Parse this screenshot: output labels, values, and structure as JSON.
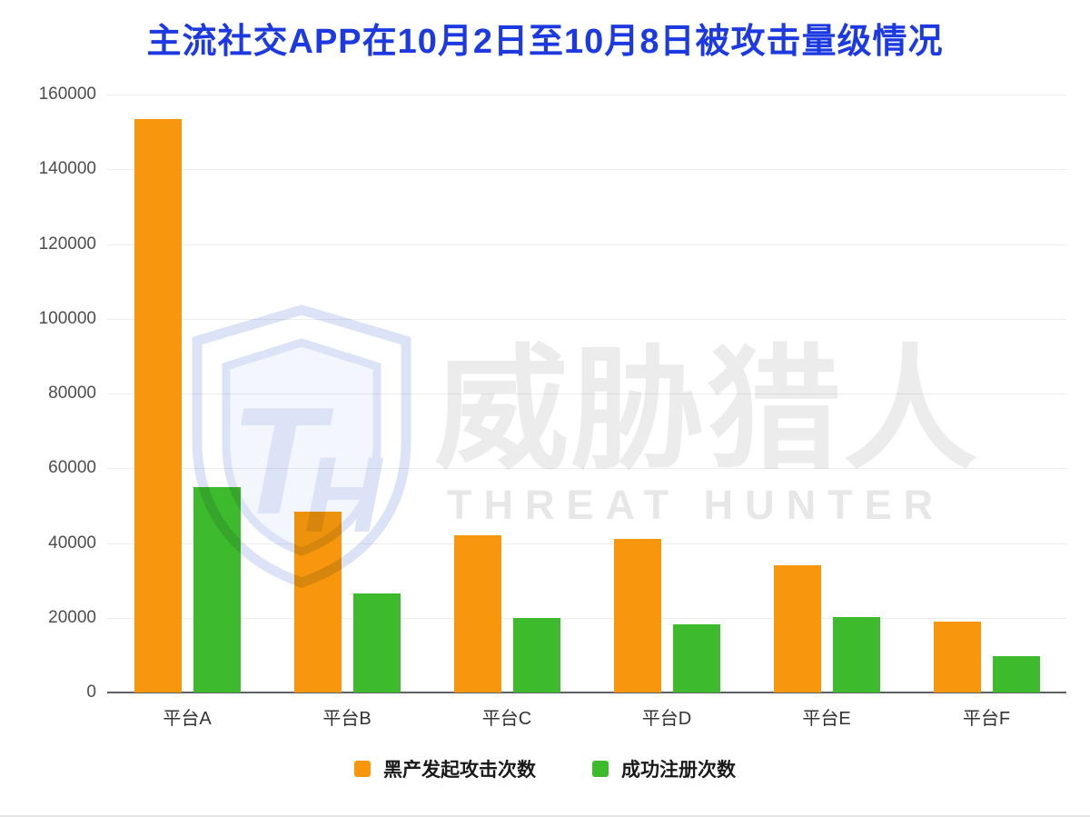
{
  "title": "主流社交APP在10月2日至10月8日被攻击量级情况",
  "colors": {
    "title": "#1c3ae0",
    "attack_series": "#F8970D",
    "register_series": "#3DBB2C",
    "axis": "#5e6166",
    "gridline": "#ededed",
    "watermark_blue": "#dce3f6"
  },
  "chart_data": {
    "type": "bar",
    "categories": [
      "平台A",
      "平台B",
      "平台C",
      "平台D",
      "平台E",
      "平台F"
    ],
    "series": [
      {
        "name": "黑产发起攻击次数",
        "color": "#F8970D",
        "values": [
          153500,
          48500,
          42000,
          41000,
          34000,
          19000
        ]
      },
      {
        "name": "成功注册次数",
        "color": "#3DBB2C",
        "values": [
          55000,
          26500,
          20000,
          18300,
          20300,
          9800
        ]
      }
    ],
    "ylim": [
      0,
      160000
    ],
    "ytick_step": 20000,
    "yticks": [
      0,
      20000,
      40000,
      60000,
      80000,
      100000,
      120000,
      140000,
      160000
    ],
    "grid": "horizontal",
    "legend_position": "bottom"
  },
  "watermark": {
    "logo": "threat-hunter-shield-icon",
    "cn": "威胁猎人",
    "en": "THREAT HUNTER"
  }
}
